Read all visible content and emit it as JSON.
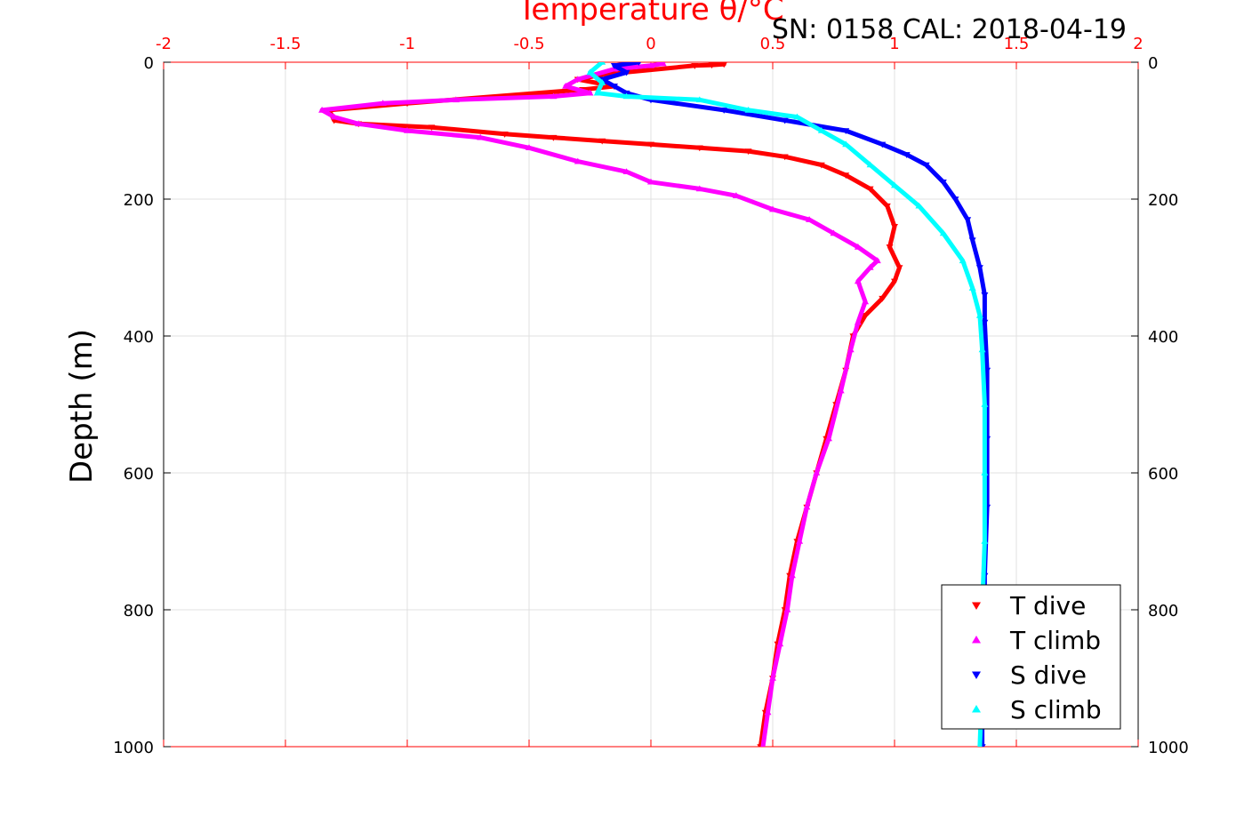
{
  "chart_data": {
    "type": "scatter",
    "title": "SN: 0158  CAL: 2018-04-19",
    "xlabel": "Temperature θ/°C",
    "ylabel": "Depth (m)",
    "xlim": [
      -2,
      2
    ],
    "ylim": [
      0,
      1000
    ],
    "y_reversed": true,
    "x_ticks": [
      "-2",
      "-1.5",
      "-1",
      "-0.5",
      "0",
      "0.5",
      "1",
      "1.5",
      "2"
    ],
    "y_ticks": [
      "0",
      "200",
      "400",
      "600",
      "800",
      "1000"
    ],
    "grid": true,
    "legend_position": "bottom-right",
    "colors": {
      "axis_top": "#ff0000",
      "axis_frame": "#000000",
      "grid": "#e0e0e0"
    },
    "series": [
      {
        "name": "T dive",
        "marker": "triangle-down",
        "color": "#ff0000",
        "points": [
          [
            0.3,
            3
          ],
          [
            0.25,
            4
          ],
          [
            0.18,
            5
          ],
          [
            -0.2,
            18
          ],
          [
            -0.3,
            25
          ],
          [
            -0.15,
            35
          ],
          [
            -0.28,
            40
          ],
          [
            -1.0,
            60
          ],
          [
            -1.32,
            70
          ],
          [
            -1.3,
            85
          ],
          [
            -1.2,
            90
          ],
          [
            -0.9,
            95
          ],
          [
            -0.6,
            105
          ],
          [
            -0.4,
            110
          ],
          [
            -0.2,
            115
          ],
          [
            0.0,
            120
          ],
          [
            0.2,
            125
          ],
          [
            0.4,
            130
          ],
          [
            0.55,
            138
          ],
          [
            0.7,
            150
          ],
          [
            0.8,
            165
          ],
          [
            0.9,
            185
          ],
          [
            0.97,
            210
          ],
          [
            1.0,
            240
          ],
          [
            0.98,
            270
          ],
          [
            1.02,
            300
          ],
          [
            1.0,
            320
          ],
          [
            0.95,
            345
          ],
          [
            0.88,
            370
          ],
          [
            0.83,
            400
          ],
          [
            0.8,
            450
          ],
          [
            0.76,
            500
          ],
          [
            0.72,
            550
          ],
          [
            0.68,
            600
          ],
          [
            0.64,
            650
          ],
          [
            0.6,
            700
          ],
          [
            0.57,
            750
          ],
          [
            0.55,
            800
          ],
          [
            0.52,
            850
          ],
          [
            0.5,
            900
          ],
          [
            0.47,
            950
          ],
          [
            0.45,
            1000
          ]
        ]
      },
      {
        "name": "T climb",
        "marker": "triangle-up",
        "color": "#ff00ff",
        "points": [
          [
            0.05,
            2
          ],
          [
            0.0,
            5
          ],
          [
            -0.15,
            10
          ],
          [
            -0.3,
            25
          ],
          [
            -0.35,
            35
          ],
          [
            -0.25,
            45
          ],
          [
            -0.4,
            50
          ],
          [
            -0.8,
            55
          ],
          [
            -1.1,
            60
          ],
          [
            -1.35,
            70
          ],
          [
            -1.3,
            80
          ],
          [
            -1.2,
            90
          ],
          [
            -1.0,
            100
          ],
          [
            -0.7,
            110
          ],
          [
            -0.5,
            125
          ],
          [
            -0.3,
            145
          ],
          [
            -0.1,
            160
          ],
          [
            0.0,
            175
          ],
          [
            0.2,
            185
          ],
          [
            0.35,
            195
          ],
          [
            0.5,
            215
          ],
          [
            0.65,
            230
          ],
          [
            0.75,
            250
          ],
          [
            0.85,
            270
          ],
          [
            0.93,
            290
          ],
          [
            0.9,
            300
          ],
          [
            0.85,
            320
          ],
          [
            0.88,
            350
          ],
          [
            0.85,
            380
          ],
          [
            0.82,
            420
          ],
          [
            0.78,
            480
          ],
          [
            0.73,
            550
          ],
          [
            0.68,
            600
          ],
          [
            0.64,
            650
          ],
          [
            0.61,
            700
          ],
          [
            0.58,
            750
          ],
          [
            0.56,
            800
          ],
          [
            0.53,
            850
          ],
          [
            0.5,
            900
          ],
          [
            0.48,
            950
          ],
          [
            0.46,
            1000
          ]
        ]
      },
      {
        "name": "S dive",
        "marker": "triangle-down",
        "color": "#0000ff",
        "points": [
          [
            -0.05,
            0
          ],
          [
            -0.15,
            5
          ],
          [
            -0.1,
            15
          ],
          [
            -0.2,
            25
          ],
          [
            -0.15,
            35
          ],
          [
            -0.1,
            45
          ],
          [
            0.0,
            55
          ],
          [
            0.3,
            70
          ],
          [
            0.55,
            85
          ],
          [
            0.8,
            100
          ],
          [
            0.95,
            120
          ],
          [
            1.05,
            135
          ],
          [
            1.13,
            150
          ],
          [
            1.2,
            175
          ],
          [
            1.25,
            200
          ],
          [
            1.3,
            230
          ],
          [
            1.32,
            260
          ],
          [
            1.35,
            300
          ],
          [
            1.37,
            340
          ],
          [
            1.37,
            380
          ],
          [
            1.38,
            450
          ],
          [
            1.38,
            550
          ],
          [
            1.38,
            650
          ],
          [
            1.37,
            750
          ],
          [
            1.37,
            850
          ],
          [
            1.36,
            950
          ],
          [
            1.36,
            1000
          ]
        ]
      },
      {
        "name": "S climb",
        "marker": "triangle-up",
        "color": "#00ffff",
        "points": [
          [
            -0.2,
            0
          ],
          [
            -0.25,
            15
          ],
          [
            -0.2,
            30
          ],
          [
            -0.22,
            45
          ],
          [
            -0.1,
            50
          ],
          [
            0.2,
            55
          ],
          [
            0.4,
            70
          ],
          [
            0.6,
            80
          ],
          [
            0.7,
            100
          ],
          [
            0.8,
            120
          ],
          [
            0.9,
            150
          ],
          [
            1.0,
            180
          ],
          [
            1.1,
            210
          ],
          [
            1.2,
            250
          ],
          [
            1.28,
            290
          ],
          [
            1.32,
            330
          ],
          [
            1.35,
            370
          ],
          [
            1.36,
            420
          ],
          [
            1.37,
            500
          ],
          [
            1.37,
            600
          ],
          [
            1.37,
            700
          ],
          [
            1.36,
            800
          ],
          [
            1.36,
            900
          ],
          [
            1.35,
            1000
          ]
        ]
      }
    ]
  }
}
